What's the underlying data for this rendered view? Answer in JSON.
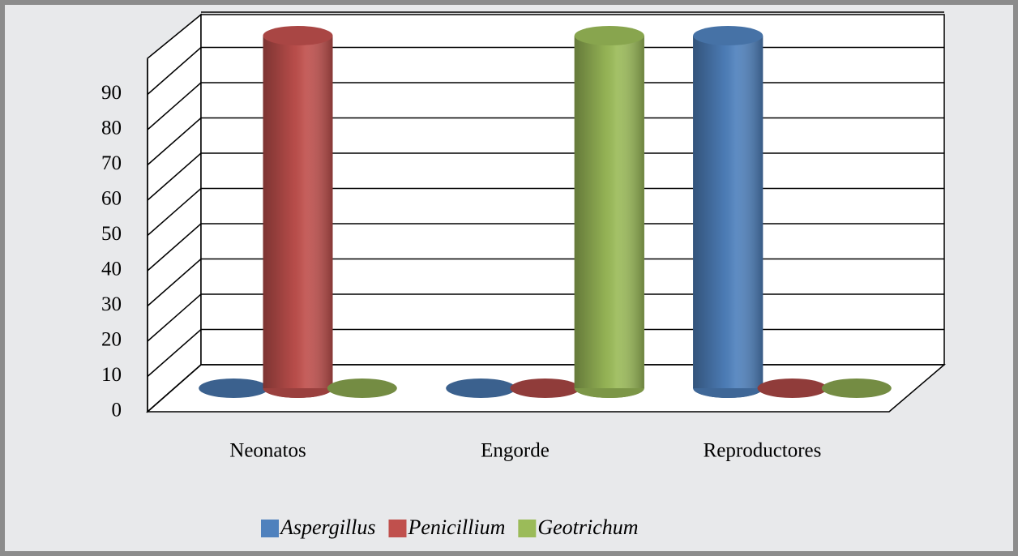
{
  "chart_data": {
    "type": "bar3d-cylinder",
    "categories": [
      "Neonatos",
      "Engorde",
      "Reproductores"
    ],
    "series": [
      {
        "name": "Aspergillus",
        "color": "#4f81bd",
        "values": [
          0,
          0,
          100
        ]
      },
      {
        "name": "Penicillium",
        "color": "#c0504d",
        "values": [
          100,
          0,
          0
        ]
      },
      {
        "name": "Geotrichum",
        "color": "#9bbb59",
        "values": [
          0,
          100,
          0
        ]
      }
    ],
    "ylim": [
      0,
      100
    ],
    "yticks": [
      0,
      10,
      20,
      30,
      40,
      50,
      60,
      70,
      80,
      90
    ],
    "grid": true,
    "legend": "bottom"
  }
}
